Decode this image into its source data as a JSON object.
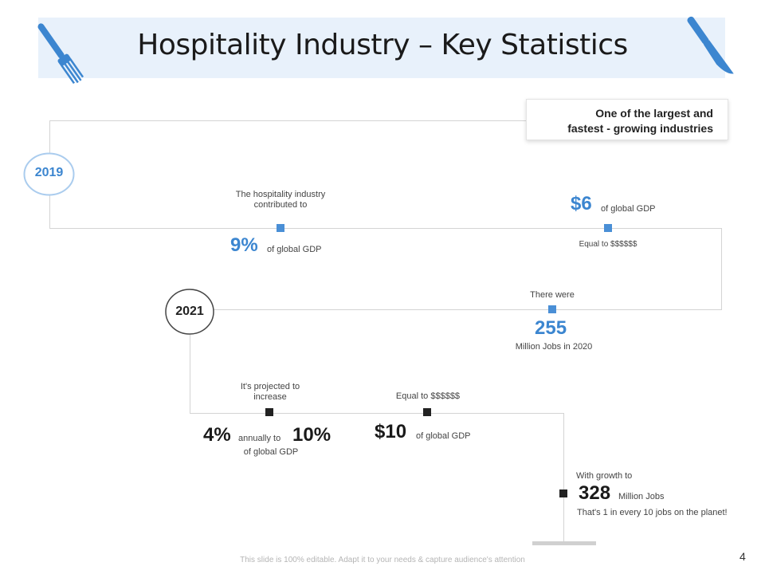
{
  "header": {
    "title": "Hospitality Industry – Key Statistics"
  },
  "info_box": {
    "line1": "One of the largest and",
    "line2": "fastest  - growing industries"
  },
  "years": {
    "first": "2019",
    "second": "2021"
  },
  "stat_2019_a": {
    "caption": "The hospitality industry contributed to",
    "value": "9%",
    "suffix": "of global GDP"
  },
  "stat_2019_b": {
    "value": "$6",
    "suffix": "of global GDP",
    "caption": "Equal to $$$$$$"
  },
  "stat_jobs_2020": {
    "caption": "There were",
    "value": "255",
    "suffix": "Million Jobs in 2020"
  },
  "stat_2021_a": {
    "caption": "It's projected to increase",
    "value_from": "4%",
    "middle": "annually to",
    "value_to": "10%",
    "suffix": "of global GDP"
  },
  "stat_2021_b": {
    "caption": "Equal to $$$$$$",
    "value": "$10",
    "suffix": "of global GDP"
  },
  "stat_growth": {
    "caption": "With growth to",
    "value": "328",
    "suffix": "Million Jobs",
    "note": "That's 1 in every 10 jobs on the planet!"
  },
  "footer": {
    "text": "This slide is 100% editable. Adapt it to your needs & capture audience's attention",
    "page": "4"
  },
  "colors": {
    "accent": "#3c86d0",
    "banner": "#e8f1fb",
    "dark": "#222222"
  }
}
